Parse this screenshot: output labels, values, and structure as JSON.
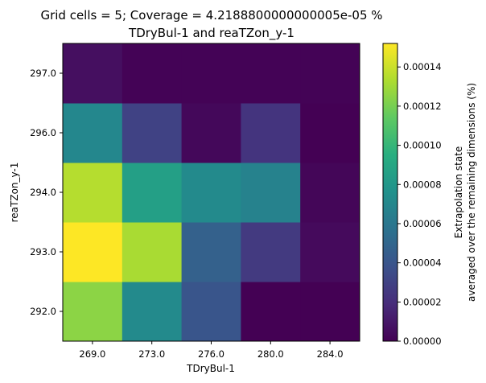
{
  "chart_data": {
    "type": "heatmap",
    "title_line1": "Grid cells = 5; Coverage = 4.2188800000000005e-05 %",
    "title_line2": "TDryBul-1 and reaTZon_y-1",
    "xlabel": "TDryBul-1",
    "ylabel": "reaTZon_y-1",
    "x_categories": [
      "269.0",
      "273.0",
      "276.0",
      "280.0",
      "284.0"
    ],
    "y_categories": [
      "292.0",
      "293.0",
      "294.0",
      "296.0",
      "297.0"
    ],
    "values": [
      [
        0.000125,
        7.2e-05,
        4e-05,
        0.0,
        0.0
      ],
      [
        0.000152,
        0.000132,
        4.7e-05,
        2.6e-05,
        4e-06
      ],
      [
        0.000135,
        8.5e-05,
        7.2e-05,
        6.7e-05,
        2e-06
      ],
      [
        7e-05,
        3e-05,
        3e-06,
        2.3e-05,
        0.0
      ],
      [
        6e-06,
        1e-06,
        1e-06,
        1e-06,
        1e-06
      ]
    ],
    "colorbar": {
      "min": 0.0,
      "max": 0.000152,
      "label_line1": "Extrapolation state",
      "label_line2": "averaged over the remaining dimensions (%)",
      "ticks": [
        0.0,
        2e-05,
        4e-05,
        6e-05,
        8e-05,
        0.0001,
        0.00012,
        0.00014
      ],
      "tick_labels": [
        "0.00000",
        "0.00002",
        "0.00004",
        "0.00006",
        "0.00008",
        "0.00010",
        "0.00012",
        "0.00014"
      ],
      "colormap": "viridis"
    }
  }
}
